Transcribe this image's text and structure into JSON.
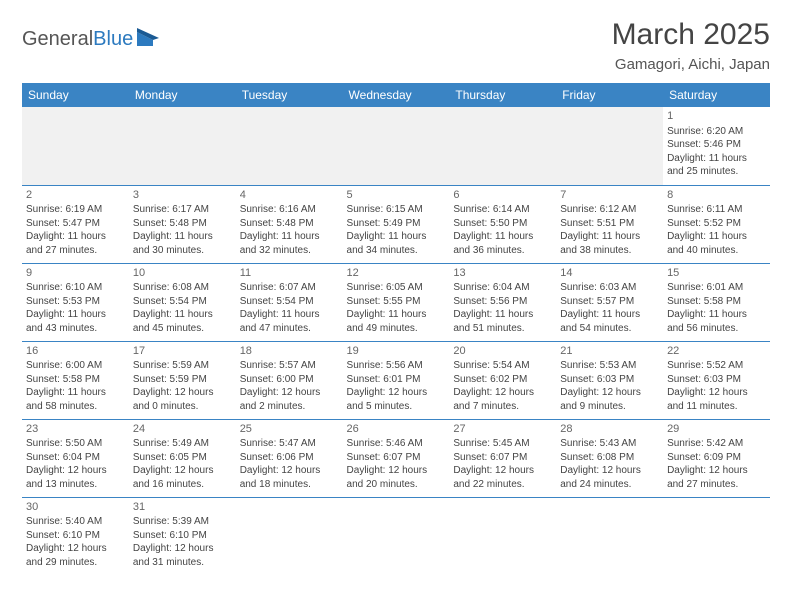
{
  "logo": {
    "brand_a": "General",
    "brand_b": "Blue"
  },
  "title": "March 2025",
  "subtitle": "Gamagori, Aichi, Japan",
  "colors": {
    "header_bg": "#3a84c4",
    "border": "#3a84c4",
    "blank_bg": "#f1f1f1",
    "text": "#444444",
    "title": "#444444",
    "brand_blue": "#2c7abf"
  },
  "typography": {
    "title_fontsize": 30,
    "subtitle_fontsize": 15,
    "header_fontsize": 12,
    "cell_fontsize": 10
  },
  "daynames": [
    "Sunday",
    "Monday",
    "Tuesday",
    "Wednesday",
    "Thursday",
    "Friday",
    "Saturday"
  ],
  "weeks": [
    [
      null,
      null,
      null,
      null,
      null,
      null,
      {
        "n": "1",
        "sr": "Sunrise: 6:20 AM",
        "ss": "Sunset: 5:46 PM",
        "d1": "Daylight: 11 hours",
        "d2": "and 25 minutes."
      }
    ],
    [
      {
        "n": "2",
        "sr": "Sunrise: 6:19 AM",
        "ss": "Sunset: 5:47 PM",
        "d1": "Daylight: 11 hours",
        "d2": "and 27 minutes."
      },
      {
        "n": "3",
        "sr": "Sunrise: 6:17 AM",
        "ss": "Sunset: 5:48 PM",
        "d1": "Daylight: 11 hours",
        "d2": "and 30 minutes."
      },
      {
        "n": "4",
        "sr": "Sunrise: 6:16 AM",
        "ss": "Sunset: 5:48 PM",
        "d1": "Daylight: 11 hours",
        "d2": "and 32 minutes."
      },
      {
        "n": "5",
        "sr": "Sunrise: 6:15 AM",
        "ss": "Sunset: 5:49 PM",
        "d1": "Daylight: 11 hours",
        "d2": "and 34 minutes."
      },
      {
        "n": "6",
        "sr": "Sunrise: 6:14 AM",
        "ss": "Sunset: 5:50 PM",
        "d1": "Daylight: 11 hours",
        "d2": "and 36 minutes."
      },
      {
        "n": "7",
        "sr": "Sunrise: 6:12 AM",
        "ss": "Sunset: 5:51 PM",
        "d1": "Daylight: 11 hours",
        "d2": "and 38 minutes."
      },
      {
        "n": "8",
        "sr": "Sunrise: 6:11 AM",
        "ss": "Sunset: 5:52 PM",
        "d1": "Daylight: 11 hours",
        "d2": "and 40 minutes."
      }
    ],
    [
      {
        "n": "9",
        "sr": "Sunrise: 6:10 AM",
        "ss": "Sunset: 5:53 PM",
        "d1": "Daylight: 11 hours",
        "d2": "and 43 minutes."
      },
      {
        "n": "10",
        "sr": "Sunrise: 6:08 AM",
        "ss": "Sunset: 5:54 PM",
        "d1": "Daylight: 11 hours",
        "d2": "and 45 minutes."
      },
      {
        "n": "11",
        "sr": "Sunrise: 6:07 AM",
        "ss": "Sunset: 5:54 PM",
        "d1": "Daylight: 11 hours",
        "d2": "and 47 minutes."
      },
      {
        "n": "12",
        "sr": "Sunrise: 6:05 AM",
        "ss": "Sunset: 5:55 PM",
        "d1": "Daylight: 11 hours",
        "d2": "and 49 minutes."
      },
      {
        "n": "13",
        "sr": "Sunrise: 6:04 AM",
        "ss": "Sunset: 5:56 PM",
        "d1": "Daylight: 11 hours",
        "d2": "and 51 minutes."
      },
      {
        "n": "14",
        "sr": "Sunrise: 6:03 AM",
        "ss": "Sunset: 5:57 PM",
        "d1": "Daylight: 11 hours",
        "d2": "and 54 minutes."
      },
      {
        "n": "15",
        "sr": "Sunrise: 6:01 AM",
        "ss": "Sunset: 5:58 PM",
        "d1": "Daylight: 11 hours",
        "d2": "and 56 minutes."
      }
    ],
    [
      {
        "n": "16",
        "sr": "Sunrise: 6:00 AM",
        "ss": "Sunset: 5:58 PM",
        "d1": "Daylight: 11 hours",
        "d2": "and 58 minutes."
      },
      {
        "n": "17",
        "sr": "Sunrise: 5:59 AM",
        "ss": "Sunset: 5:59 PM",
        "d1": "Daylight: 12 hours",
        "d2": "and 0 minutes."
      },
      {
        "n": "18",
        "sr": "Sunrise: 5:57 AM",
        "ss": "Sunset: 6:00 PM",
        "d1": "Daylight: 12 hours",
        "d2": "and 2 minutes."
      },
      {
        "n": "19",
        "sr": "Sunrise: 5:56 AM",
        "ss": "Sunset: 6:01 PM",
        "d1": "Daylight: 12 hours",
        "d2": "and 5 minutes."
      },
      {
        "n": "20",
        "sr": "Sunrise: 5:54 AM",
        "ss": "Sunset: 6:02 PM",
        "d1": "Daylight: 12 hours",
        "d2": "and 7 minutes."
      },
      {
        "n": "21",
        "sr": "Sunrise: 5:53 AM",
        "ss": "Sunset: 6:03 PM",
        "d1": "Daylight: 12 hours",
        "d2": "and 9 minutes."
      },
      {
        "n": "22",
        "sr": "Sunrise: 5:52 AM",
        "ss": "Sunset: 6:03 PM",
        "d1": "Daylight: 12 hours",
        "d2": "and 11 minutes."
      }
    ],
    [
      {
        "n": "23",
        "sr": "Sunrise: 5:50 AM",
        "ss": "Sunset: 6:04 PM",
        "d1": "Daylight: 12 hours",
        "d2": "and 13 minutes."
      },
      {
        "n": "24",
        "sr": "Sunrise: 5:49 AM",
        "ss": "Sunset: 6:05 PM",
        "d1": "Daylight: 12 hours",
        "d2": "and 16 minutes."
      },
      {
        "n": "25",
        "sr": "Sunrise: 5:47 AM",
        "ss": "Sunset: 6:06 PM",
        "d1": "Daylight: 12 hours",
        "d2": "and 18 minutes."
      },
      {
        "n": "26",
        "sr": "Sunrise: 5:46 AM",
        "ss": "Sunset: 6:07 PM",
        "d1": "Daylight: 12 hours",
        "d2": "and 20 minutes."
      },
      {
        "n": "27",
        "sr": "Sunrise: 5:45 AM",
        "ss": "Sunset: 6:07 PM",
        "d1": "Daylight: 12 hours",
        "d2": "and 22 minutes."
      },
      {
        "n": "28",
        "sr": "Sunrise: 5:43 AM",
        "ss": "Sunset: 6:08 PM",
        "d1": "Daylight: 12 hours",
        "d2": "and 24 minutes."
      },
      {
        "n": "29",
        "sr": "Sunrise: 5:42 AM",
        "ss": "Sunset: 6:09 PM",
        "d1": "Daylight: 12 hours",
        "d2": "and 27 minutes."
      }
    ],
    [
      {
        "n": "30",
        "sr": "Sunrise: 5:40 AM",
        "ss": "Sunset: 6:10 PM",
        "d1": "Daylight: 12 hours",
        "d2": "and 29 minutes."
      },
      {
        "n": "31",
        "sr": "Sunrise: 5:39 AM",
        "ss": "Sunset: 6:10 PM",
        "d1": "Daylight: 12 hours",
        "d2": "and 31 minutes."
      },
      null,
      null,
      null,
      null,
      null
    ]
  ]
}
